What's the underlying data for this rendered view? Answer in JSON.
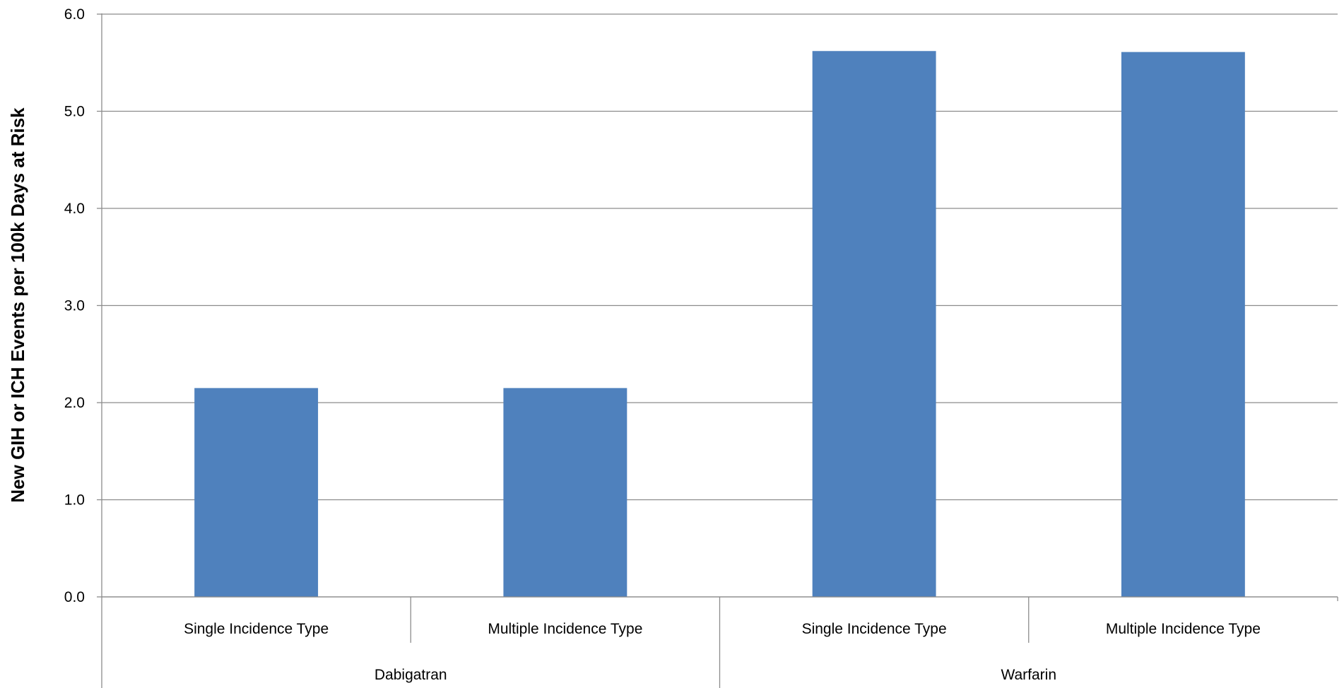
{
  "chart_data": {
    "type": "bar",
    "title": "",
    "xlabel": "",
    "ylabel": "New  GIH or ICH Events per 100k Days at Risk",
    "ylim": [
      0,
      6
    ],
    "yticks": [
      "0.0",
      "1.0",
      "2.0",
      "3.0",
      "4.0",
      "5.0",
      "6.0"
    ],
    "grid": true,
    "legend": "none",
    "bar_color": "#4F81BD",
    "categories": [
      {
        "label": "Single Incidence Type",
        "group": "Dabigatran"
      },
      {
        "label": "Multiple Incidence Type",
        "group": "Dabigatran"
      },
      {
        "label": "Single Incidence Type",
        "group": "Warfarin"
      },
      {
        "label": "Multiple Incidence Type",
        "group": "Warfarin"
      }
    ],
    "groups": [
      "Dabigatran",
      "Warfarin"
    ],
    "values": [
      2.15,
      2.15,
      5.62,
      5.61
    ]
  }
}
